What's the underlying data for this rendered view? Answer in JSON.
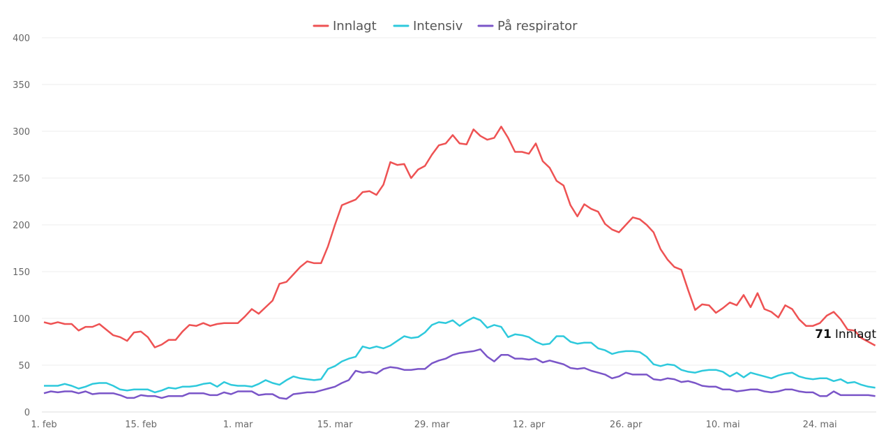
{
  "chart_data": {
    "type": "line",
    "title": "",
    "xlabel": "",
    "ylabel": "",
    "ylim": [
      0,
      400
    ],
    "yticks": [
      0,
      50,
      100,
      150,
      200,
      250,
      300,
      350,
      400
    ],
    "x_start": "1. feb",
    "x_end": "1. jun",
    "xtick_labels": [
      "1. feb",
      "15. feb",
      "1. mar",
      "15. mar",
      "29. mar",
      "12. apr",
      "26. apr",
      "10. mai",
      "24. mai"
    ],
    "xtick_day_index": [
      0,
      14,
      28,
      42,
      56,
      70,
      84,
      98,
      112
    ],
    "grid": true,
    "legend_position": "top-center",
    "series": [
      {
        "name": "Innlagt",
        "color": "#ee5253",
        "values": [
          96,
          94,
          96,
          94,
          94,
          87,
          91,
          91,
          94,
          88,
          82,
          80,
          76,
          85,
          86,
          80,
          69,
          72,
          77,
          77,
          86,
          93,
          92,
          95,
          92,
          94,
          95,
          95,
          95,
          102,
          110,
          105,
          112,
          119,
          137,
          139,
          147,
          155,
          161,
          159,
          159,
          177,
          200,
          221,
          224,
          227,
          235,
          236,
          232,
          243,
          267,
          264,
          265,
          250,
          259,
          263,
          275,
          285,
          287,
          296,
          287,
          286,
          302,
          295,
          291,
          293,
          305,
          293,
          278,
          278,
          276,
          287,
          268,
          261,
          247,
          242,
          221,
          209,
          222,
          217,
          214,
          201,
          195,
          192,
          200,
          208,
          206,
          200,
          192,
          174,
          163,
          155,
          152,
          130,
          109,
          115,
          114,
          106,
          111,
          117,
          114,
          125,
          112,
          127,
          110,
          107,
          101,
          114,
          110,
          99,
          92,
          92,
          95,
          103,
          107,
          99,
          88,
          87,
          79,
          75,
          71
        ]
      },
      {
        "name": "Intensiv",
        "color": "#2ec9dc",
        "values": [
          28,
          28,
          28,
          30,
          28,
          25,
          27,
          30,
          31,
          31,
          28,
          24,
          23,
          24,
          24,
          24,
          21,
          23,
          26,
          25,
          27,
          27,
          28,
          30,
          31,
          27,
          32,
          29,
          28,
          28,
          27,
          30,
          34,
          31,
          29,
          34,
          38,
          36,
          35,
          34,
          35,
          46,
          49,
          54,
          57,
          59,
          70,
          68,
          70,
          68,
          71,
          76,
          81,
          79,
          80,
          85,
          93,
          96,
          95,
          98,
          92,
          97,
          101,
          98,
          90,
          93,
          91,
          80,
          83,
          82,
          80,
          75,
          72,
          73,
          81,
          81,
          75,
          73,
          74,
          74,
          68,
          66,
          62,
          64,
          65,
          65,
          64,
          59,
          51,
          49,
          51,
          50,
          45,
          43,
          42,
          44,
          45,
          45,
          43,
          38,
          42,
          37,
          42,
          40,
          38,
          36,
          39,
          41,
          42,
          38,
          36,
          35,
          36,
          36,
          33,
          35,
          31,
          32,
          29,
          27,
          26
        ]
      },
      {
        "name": "På respirator",
        "color": "#7a55c8",
        "values": [
          20,
          22,
          21,
          22,
          22,
          20,
          22,
          19,
          20,
          20,
          20,
          18,
          15,
          15,
          18,
          17,
          17,
          15,
          17,
          17,
          17,
          20,
          20,
          20,
          18,
          18,
          21,
          19,
          22,
          22,
          22,
          18,
          19,
          19,
          15,
          14,
          19,
          20,
          21,
          21,
          23,
          25,
          27,
          31,
          34,
          44,
          42,
          43,
          41,
          46,
          48,
          47,
          45,
          45,
          46,
          46,
          52,
          55,
          57,
          61,
          63,
          64,
          65,
          67,
          59,
          54,
          61,
          61,
          57,
          57,
          56,
          57,
          53,
          55,
          53,
          51,
          47,
          46,
          47,
          44,
          42,
          40,
          36,
          38,
          42,
          40,
          40,
          40,
          35,
          34,
          36,
          35,
          32,
          33,
          31,
          28,
          27,
          27,
          24,
          24,
          22,
          23,
          24,
          24,
          22,
          21,
          22,
          24,
          24,
          22,
          21,
          21,
          17,
          17,
          22,
          18,
          18,
          18,
          18,
          18,
          17
        ]
      }
    ],
    "annotation": {
      "value": "71",
      "label": "Innlagt"
    }
  }
}
